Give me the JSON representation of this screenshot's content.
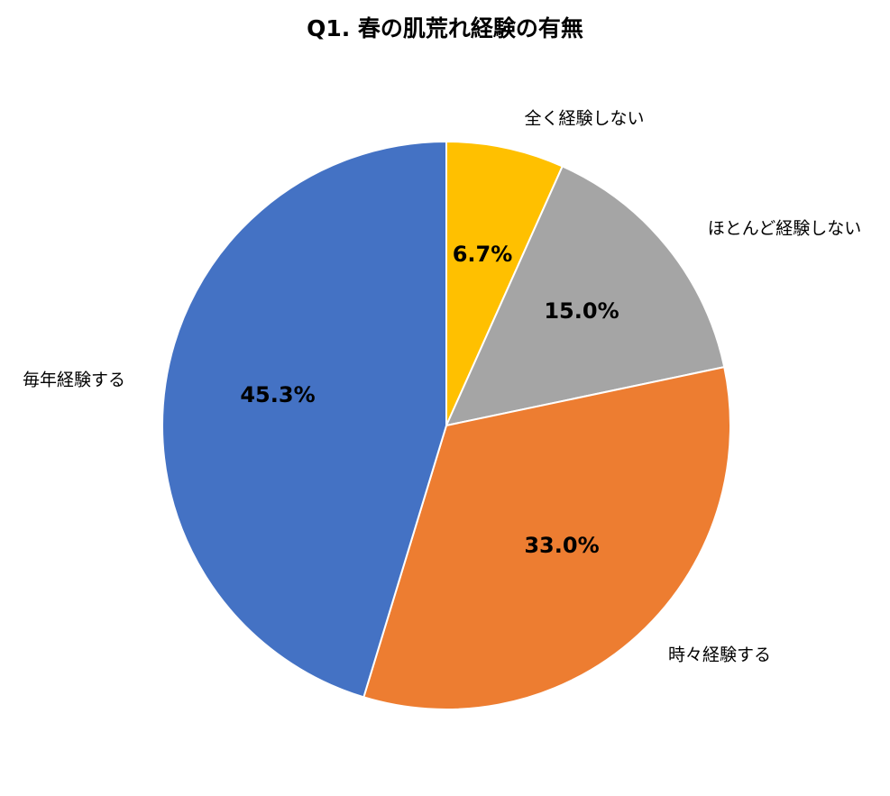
{
  "chart_data": {
    "type": "pie",
    "title": "Q1. 春の肌荒れ経験の有無",
    "start_angle_deg": 0,
    "direction": "clockwise",
    "legend": "none (category labels beside slices)",
    "slices": [
      {
        "label": "全く経験しない",
        "value": 6.7,
        "value_label": "6.7%",
        "color": "#FFC000"
      },
      {
        "label": "ほとんど経験しない",
        "value": 15.0,
        "value_label": "15.0%",
        "color": "#A5A5A5"
      },
      {
        "label": "時々経験する",
        "value": 33.0,
        "value_label": "33.0%",
        "color": "#ED7D31"
      },
      {
        "label": "毎年経験する",
        "value": 45.3,
        "value_label": "45.3%",
        "color": "#4472C4"
      }
    ]
  }
}
